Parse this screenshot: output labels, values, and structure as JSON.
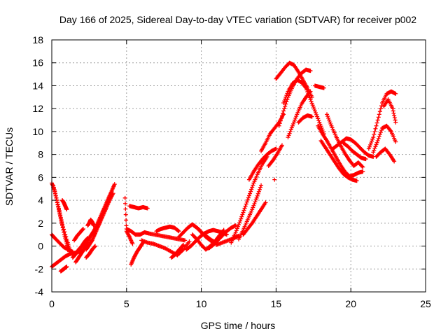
{
  "chart_data": {
    "type": "scatter",
    "title": "Day 166 of 2025, Sidereal Day-to-day VTEC variation (SDTVAR) for receiver p002",
    "xlabel": "GPS time / hours",
    "ylabel": "SDTVAR / TECUs",
    "xlim": [
      0,
      25
    ],
    "ylim": [
      -4,
      18
    ],
    "x_ticks": [
      0,
      5,
      10,
      15,
      20,
      25
    ],
    "y_ticks": [
      -4,
      -2,
      0,
      2,
      4,
      6,
      8,
      10,
      12,
      14,
      16,
      18
    ],
    "grid": true,
    "marker": "+",
    "colors": {
      "points": "#ff0000",
      "grid": "#a0a0a0",
      "axis": "#000000"
    },
    "series": [
      {
        "name": "track-01",
        "x": [
          0.0,
          0.2,
          0.4,
          0.6,
          0.8,
          1.0,
          1.2
        ],
        "y": [
          5.5,
          4.8,
          3.6,
          2.4,
          1.2,
          0.2,
          -0.6
        ]
      },
      {
        "name": "track-02",
        "x": [
          0.1,
          0.3,
          0.5,
          0.7,
          1.0,
          1.2
        ],
        "y": [
          5.3,
          4.2,
          3.1,
          1.9,
          0.6,
          -0.3
        ]
      },
      {
        "name": "track-03",
        "x": [
          0.0,
          0.3,
          0.6,
          0.9,
          1.2,
          1.5,
          1.8,
          2.0
        ],
        "y": [
          -1.8,
          -1.5,
          -1.2,
          -0.9,
          -0.7,
          -0.6,
          -0.5,
          -0.4
        ]
      },
      {
        "name": "track-04",
        "x": [
          0.6,
          0.7,
          0.8,
          0.9,
          1.0
        ],
        "y": [
          -2.2,
          -2.1,
          -2.0,
          -1.9,
          -1.8
        ]
      },
      {
        "name": "track-05",
        "x": [
          0.7,
          0.8,
          0.9,
          1.0
        ],
        "y": [
          4.0,
          3.8,
          3.5,
          3.2
        ]
      },
      {
        "name": "track-06",
        "x": [
          0.0,
          0.2,
          0.5,
          0.8,
          1.1,
          1.4
        ],
        "y": [
          1.0,
          0.7,
          0.3,
          -0.1,
          -0.3,
          -0.5
        ]
      },
      {
        "name": "track-07",
        "x": [
          1.6,
          1.8,
          2.0,
          2.2,
          2.4
        ],
        "y": [
          -1.4,
          -1.0,
          -0.6,
          -0.2,
          0.2
        ]
      },
      {
        "name": "track-08",
        "x": [
          1.4,
          1.6,
          1.8,
          2.0,
          2.2,
          2.4
        ],
        "y": [
          -1.0,
          -0.7,
          -0.3,
          0.0,
          0.4,
          0.7
        ]
      },
      {
        "name": "track-09",
        "x": [
          1.5,
          1.7,
          1.9,
          2.1
        ],
        "y": [
          0.5,
          0.9,
          1.2,
          1.5
        ]
      },
      {
        "name": "track-10",
        "x": [
          2.0,
          2.2,
          2.4,
          2.6,
          2.8,
          3.0,
          3.2,
          3.4,
          3.6,
          3.8,
          4.0,
          4.2
        ],
        "y": [
          -0.5,
          -0.1,
          0.4,
          0.9,
          1.3,
          1.8,
          2.4,
          3.0,
          3.6,
          4.2,
          4.8,
          5.4
        ]
      },
      {
        "name": "track-11",
        "x": [
          2.3,
          2.5,
          2.7,
          2.9,
          3.1,
          3.3,
          3.5,
          3.7,
          3.9,
          4.1
        ],
        "y": [
          -0.3,
          0.1,
          0.5,
          1.1,
          1.7,
          2.3,
          2.9,
          3.5,
          4.1,
          4.6
        ]
      },
      {
        "name": "track-12",
        "x": [
          2.4,
          2.5,
          2.6,
          2.7,
          2.8
        ],
        "y": [
          1.8,
          2.0,
          2.3,
          2.1,
          1.8
        ]
      },
      {
        "name": "track-13",
        "x": [
          2.3,
          2.5,
          2.7,
          2.9
        ],
        "y": [
          -1.0,
          -0.7,
          -0.3,
          0.0
        ]
      },
      {
        "name": "track-14",
        "x": [
          4.9,
          5.0,
          5.2,
          5.4
        ],
        "y": [
          4.2,
          1.3,
          0.8,
          0.2
        ]
      },
      {
        "name": "track-15",
        "x": [
          5.2,
          5.5,
          5.8,
          6.1,
          6.4
        ],
        "y": [
          3.5,
          3.4,
          3.3,
          3.4,
          3.3
        ]
      },
      {
        "name": "track-16",
        "x": [
          5.0,
          5.3,
          5.6,
          5.9,
          6.2,
          6.5
        ],
        "y": [
          1.5,
          1.3,
          1.0,
          1.0,
          1.2,
          1.1
        ]
      },
      {
        "name": "track-17",
        "x": [
          5.3,
          5.5,
          5.7,
          5.9,
          6.1
        ],
        "y": [
          -1.6,
          -1.0,
          -0.5,
          -0.1,
          0.3
        ]
      },
      {
        "name": "track-18",
        "x": [
          6.0,
          6.4,
          6.8,
          7.2,
          7.6,
          8.0,
          8.4,
          8.8,
          9.2
        ],
        "y": [
          0.5,
          0.3,
          0.2,
          0.0,
          -0.2,
          -0.5,
          -0.8,
          -0.3,
          0.4
        ]
      },
      {
        "name": "track-19",
        "x": [
          6.5,
          6.9,
          7.3,
          7.7,
          8.1,
          8.5,
          8.9
        ],
        "y": [
          1.1,
          1.0,
          0.9,
          0.8,
          0.7,
          0.6,
          0.5
        ]
      },
      {
        "name": "track-20",
        "x": [
          7.0,
          7.3,
          7.6,
          7.9,
          8.2,
          8.5
        ],
        "y": [
          1.3,
          1.5,
          1.6,
          1.7,
          1.6,
          1.3
        ]
      },
      {
        "name": "track-21",
        "x": [
          8.0,
          8.2,
          8.4,
          8.6,
          8.8
        ],
        "y": [
          -1.0,
          -0.8,
          -0.5,
          -0.2,
          0.1
        ]
      },
      {
        "name": "track-22",
        "x": [
          8.5,
          8.8,
          9.1,
          9.4,
          9.7,
          10.0,
          10.3,
          10.6,
          10.9
        ],
        "y": [
          0.8,
          1.2,
          1.6,
          1.9,
          1.6,
          1.2,
          0.8,
          0.5,
          0.2
        ]
      },
      {
        "name": "track-23",
        "x": [
          9.0,
          9.3,
          9.6,
          9.9,
          10.2,
          10.5,
          10.8,
          11.1,
          11.4,
          11.7
        ],
        "y": [
          -0.3,
          0.0,
          0.4,
          0.8,
          1.1,
          1.3,
          1.4,
          1.3,
          1.2,
          1.0
        ]
      },
      {
        "name": "track-24",
        "x": [
          9.4,
          9.7,
          10.0,
          10.3,
          10.6,
          10.9,
          11.2,
          11.5
        ],
        "y": [
          1.0,
          0.6,
          0.1,
          -0.3,
          0.0,
          0.4,
          0.9,
          1.4
        ]
      },
      {
        "name": "track-25",
        "x": [
          9.5,
          9.8,
          10.1,
          10.4,
          10.7,
          11.0
        ],
        "y": [
          1.8,
          1.5,
          1.1,
          0.8,
          0.5,
          0.3
        ]
      },
      {
        "name": "track-26",
        "x": [
          10.5,
          10.8,
          11.1,
          11.4,
          11.7,
          12.0,
          12.3
        ],
        "y": [
          -0.2,
          0.1,
          0.5,
          0.9,
          1.3,
          1.6,
          1.8
        ]
      },
      {
        "name": "track-27",
        "x": [
          11.0,
          11.4,
          11.8,
          12.2,
          12.5
        ],
        "y": [
          0.1,
          0.3,
          0.5,
          0.7,
          0.9
        ]
      },
      {
        "name": "track-28",
        "x": [
          12.0,
          12.3,
          12.6,
          12.9,
          13.2,
          13.5,
          13.8,
          14.1,
          14.4
        ],
        "y": [
          0.3,
          1.2,
          2.2,
          3.3,
          4.4,
          5.5,
          6.4,
          7.2,
          7.8
        ]
      },
      {
        "name": "track-29",
        "x": [
          12.5,
          12.8,
          13.1,
          13.4,
          13.7,
          14.0
        ],
        "y": [
          0.6,
          1.4,
          2.3,
          3.2,
          4.2,
          5.3
        ]
      },
      {
        "name": "track-30",
        "x": [
          12.8,
          13.1,
          13.4,
          13.7,
          14.0,
          14.3
        ],
        "y": [
          1.0,
          1.5,
          2.0,
          2.6,
          3.2,
          3.8
        ]
      },
      {
        "name": "track-31",
        "x": [
          13.2,
          13.5,
          13.8,
          14.1,
          14.4,
          14.7,
          15.0
        ],
        "y": [
          5.8,
          6.5,
          7.1,
          7.6,
          8.0,
          8.3,
          8.5
        ]
      },
      {
        "name": "track-32",
        "x": [
          14.0,
          14.3,
          14.6,
          14.9,
          15.2,
          15.5
        ],
        "y": [
          8.3,
          9.0,
          9.8,
          10.3,
          10.8,
          11.5
        ]
      },
      {
        "name": "track-33",
        "x": [
          14.5,
          14.8,
          15.1,
          15.4
        ],
        "y": [
          7.0,
          7.5,
          8.1,
          8.8
        ]
      },
      {
        "name": "track-34",
        "x": [
          14.9
        ],
        "y": [
          5.8
        ]
      },
      {
        "name": "track-35",
        "x": [
          15.0,
          15.3,
          15.6,
          15.9,
          16.2,
          16.5,
          16.8,
          17.1,
          17.4
        ],
        "y": [
          14.6,
          15.1,
          15.6,
          16.0,
          15.8,
          15.2,
          14.5,
          13.8,
          13.0
        ]
      },
      {
        "name": "track-36",
        "x": [
          15.2,
          15.5,
          15.8,
          16.1,
          16.4,
          16.7,
          17.0,
          17.3
        ],
        "y": [
          10.5,
          11.8,
          13.0,
          13.9,
          14.6,
          15.1,
          15.4,
          15.3
        ]
      },
      {
        "name": "track-37",
        "x": [
          15.5,
          15.8,
          16.1,
          16.4,
          16.7,
          17.0,
          17.3,
          17.6,
          17.9,
          18.2
        ],
        "y": [
          12.5,
          13.5,
          14.2,
          14.5,
          14.3,
          13.8,
          12.8,
          11.8,
          10.8,
          9.8
        ]
      },
      {
        "name": "track-38",
        "x": [
          15.8,
          16.1,
          16.4,
          16.7,
          17.0,
          17.3
        ],
        "y": [
          9.5,
          10.5,
          11.5,
          12.4,
          13.0,
          13.5
        ]
      },
      {
        "name": "track-39",
        "x": [
          16.5,
          16.8,
          17.1,
          17.4
        ],
        "y": [
          10.8,
          11.2,
          11.4,
          11.3
        ]
      },
      {
        "name": "track-40",
        "x": [
          17.6,
          17.9,
          18.2
        ],
        "y": [
          14.0,
          13.9,
          13.8
        ]
      },
      {
        "name": "track-41",
        "x": [
          17.8,
          18.1,
          18.4,
          18.7,
          19.0,
          19.3,
          19.6,
          19.9,
          20.2,
          20.5,
          20.8
        ],
        "y": [
          10.5,
          9.8,
          9.2,
          8.5,
          7.8,
          7.1,
          6.5,
          6.1,
          6.2,
          6.4,
          6.5
        ]
      },
      {
        "name": "track-42",
        "x": [
          18.0,
          18.3,
          18.6,
          18.9,
          19.2,
          19.5,
          19.8,
          20.1,
          20.4
        ],
        "y": [
          9.2,
          8.6,
          8.0,
          7.4,
          6.8,
          6.3,
          6.0,
          5.8,
          5.7
        ]
      },
      {
        "name": "track-43",
        "x": [
          18.4,
          18.7,
          19.0,
          19.3,
          19.6,
          19.9,
          20.2,
          20.5,
          20.8
        ],
        "y": [
          11.5,
          10.5,
          9.6,
          8.8,
          8.1,
          7.5,
          7.0,
          7.3,
          6.9
        ]
      },
      {
        "name": "track-44",
        "x": [
          18.8,
          19.1,
          19.4,
          19.7,
          20.0,
          20.3,
          20.6,
          20.9,
          21.2,
          21.5
        ],
        "y": [
          8.5,
          8.8,
          9.1,
          9.4,
          9.3,
          9.0,
          8.6,
          8.2,
          7.9,
          7.8
        ]
      },
      {
        "name": "track-45",
        "x": [
          19.5,
          19.8,
          20.1,
          20.4,
          20.7,
          21.0
        ],
        "y": [
          9.0,
          8.7,
          8.3,
          8.0,
          7.7,
          7.6
        ]
      },
      {
        "name": "track-46",
        "x": [
          21.2,
          21.5,
          21.8,
          22.1,
          22.4,
          22.7,
          23.0
        ],
        "y": [
          8.5,
          9.5,
          11.0,
          12.5,
          13.3,
          13.5,
          13.3
        ]
      },
      {
        "name": "track-47",
        "x": [
          21.5,
          21.8,
          22.1,
          22.4,
          22.7,
          23.0
        ],
        "y": [
          8.2,
          9.2,
          10.3,
          10.5,
          10.0,
          9.1
        ]
      },
      {
        "name": "track-48",
        "x": [
          21.7,
          22.0,
          22.3,
          22.6,
          22.9
        ],
        "y": [
          7.8,
          8.2,
          8.5,
          8.0,
          7.4
        ]
      },
      {
        "name": "track-49",
        "x": [
          22.2,
          22.5,
          22.8,
          23.0
        ],
        "y": [
          12.2,
          12.8,
          12.0,
          10.8
        ]
      }
    ]
  }
}
